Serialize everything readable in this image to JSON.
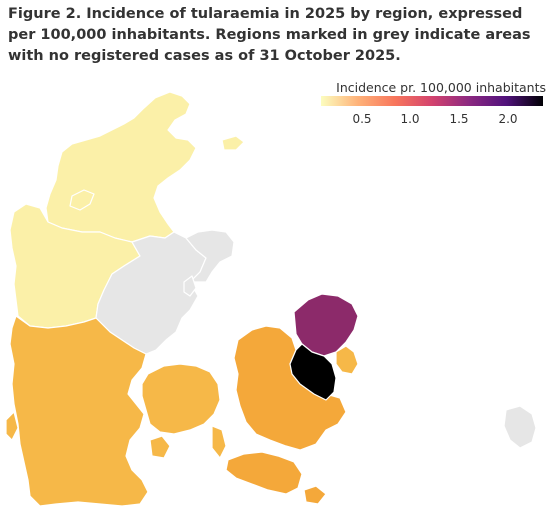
{
  "title": "Figure 2. Incidence of tularaemia in 2025 by region, expressed per 100,000 inhabitants. Regions marked in grey indicate areas with no registered cases as of 31 October 2025.",
  "legend": {
    "title": "Incidence pr. 100,000 inhabitants",
    "ticks": [
      "0.5",
      "1.0",
      "1.5",
      "2.0"
    ],
    "tick_values": [
      0.5,
      1.0,
      1.5,
      2.0
    ],
    "range": [
      0.0,
      2.3
    ],
    "colors": [
      "#fcfdbf",
      "#feb279",
      "#f8765c",
      "#d3436e",
      "#8c2981",
      "#51127c",
      "#000004"
    ]
  },
  "colors": {
    "no_cases": "#e6e6e6",
    "very_low": "#fbf0a8",
    "low": "#f6b848",
    "medium": "#f4a83a",
    "high": "#8c2a6a",
    "very_high": "#000000",
    "outline": "#888888"
  }
}
